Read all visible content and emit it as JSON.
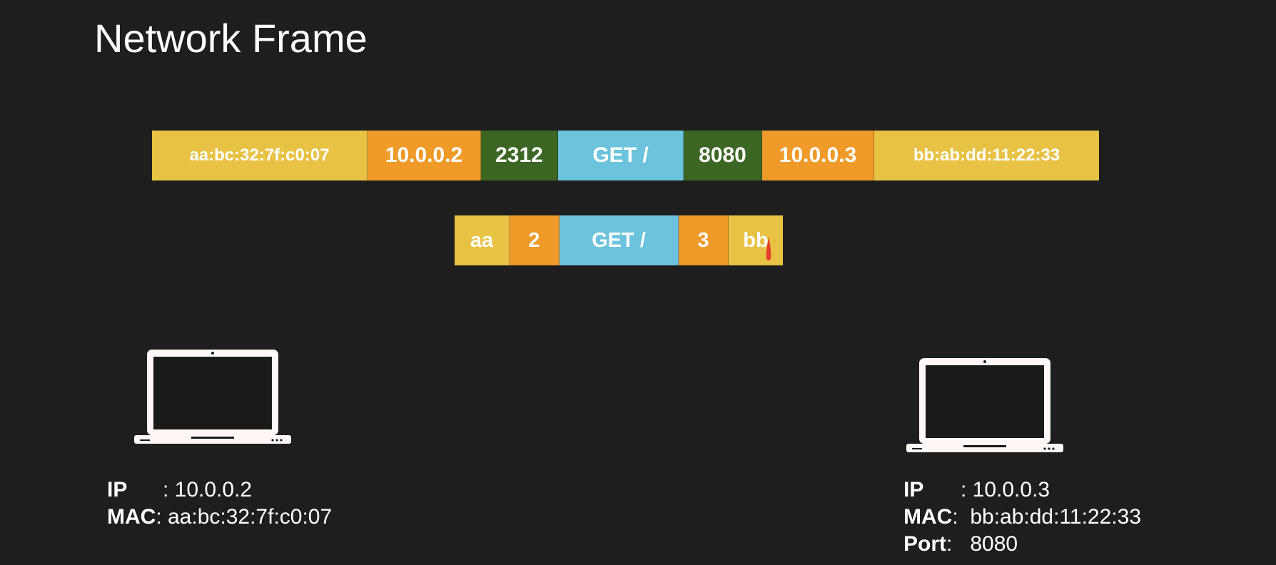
{
  "title": "Network Frame",
  "full_frame": [
    {
      "label": "aa:bc:32:7f:c0:07",
      "color": "#e8c245"
    },
    {
      "label": "10.0.0.2",
      "color": "#ef9a29"
    },
    {
      "label": "2312",
      "color": "#3c6623"
    },
    {
      "label": "GET /",
      "color": "#6bc3de"
    },
    {
      "label": "8080",
      "color": "#3c6623"
    },
    {
      "label": "10.0.0.3",
      "color": "#ef9a29"
    },
    {
      "label": "bb:ab:dd:11:22:33",
      "color": "#e8c245"
    }
  ],
  "short_frame": [
    {
      "label": "aa",
      "color": "#e8c245"
    },
    {
      "label": "2",
      "color": "#ef9a29"
    },
    {
      "label": "GET /",
      "color": "#6bc3de"
    },
    {
      "label": "3",
      "color": "#ef9a29"
    },
    {
      "label": "bb",
      "color": "#e8c245"
    }
  ],
  "left_host": {
    "icon": "laptop-icon",
    "ip_key": "IP",
    "ip_sep": "     : ",
    "ip_value": "10.0.0.2",
    "mac_key": "MAC",
    "mac_sep": ": ",
    "mac_value": "aa:bc:32:7f:c0:07"
  },
  "right_host": {
    "icon": "laptop-icon",
    "ip_key": "IP",
    "ip_sep": "     : ",
    "ip_value": "10.0.0.3",
    "mac_key": "MAC",
    "mac_sep": ":  ",
    "mac_value": "bb:ab:dd:11:22:33",
    "port_key": "Port",
    "port_sep": ":   ",
    "port_value": "8080"
  }
}
